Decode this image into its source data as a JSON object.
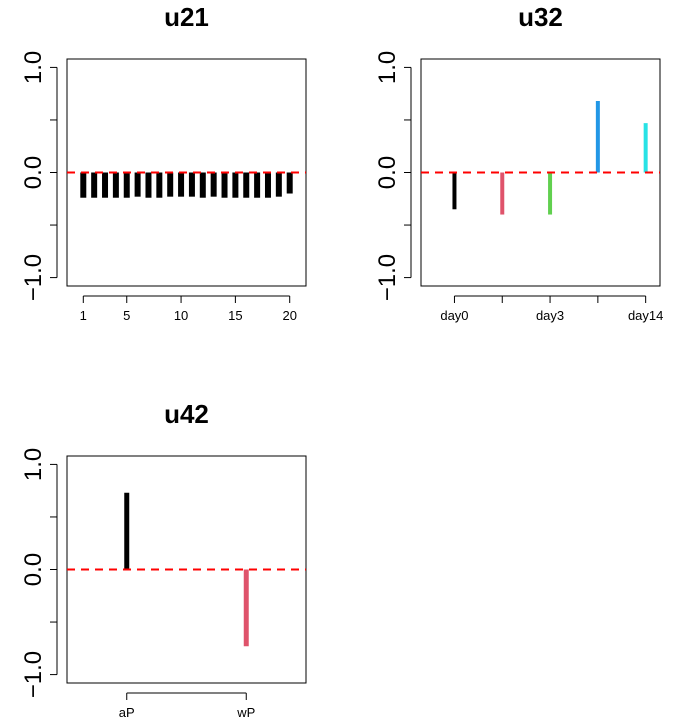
{
  "chart_data": [
    {
      "type": "bar",
      "title": "u21",
      "ylim": [
        -1.0,
        1.0
      ],
      "yticks": [
        {
          "value": 1.0,
          "label": "1.0"
        },
        {
          "value": 0.0,
          "label": "0.0"
        },
        {
          "value": -1.0,
          "label": "−1.0"
        }
      ],
      "xlim": [
        -0.5,
        21.5
      ],
      "xticks": [
        {
          "value": 1,
          "label": "1"
        },
        {
          "value": 5,
          "label": "5"
        },
        {
          "value": 10,
          "label": "10"
        },
        {
          "value": 15,
          "label": "15"
        },
        {
          "value": 20,
          "label": "20"
        }
      ],
      "x": [
        1,
        2,
        3,
        4,
        5,
        6,
        7,
        8,
        9,
        10,
        11,
        12,
        13,
        14,
        15,
        16,
        17,
        18,
        19,
        20
      ],
      "values": [
        -0.24,
        -0.24,
        -0.24,
        -0.24,
        -0.24,
        -0.23,
        -0.24,
        -0.24,
        -0.23,
        -0.23,
        -0.23,
        -0.24,
        -0.23,
        -0.24,
        -0.24,
        -0.24,
        -0.24,
        -0.24,
        -0.23,
        -0.2
      ],
      "colors": [
        "#000000"
      ],
      "reference_line": {
        "y": 0,
        "color": "#ff0000",
        "style": "dashed"
      },
      "grid": false
    },
    {
      "type": "bar",
      "title": "u32",
      "ylim": [
        -1.0,
        1.0
      ],
      "yticks": [
        {
          "value": 1.0,
          "label": "1.0"
        },
        {
          "value": 0.0,
          "label": "0.0"
        },
        {
          "value": -1.0,
          "label": "−1.0"
        }
      ],
      "xlim": [
        0.3,
        5.3
      ],
      "xticks": [
        {
          "value": 1,
          "label": "day0"
        },
        {
          "value": 3,
          "label": "day3"
        },
        {
          "value": 5,
          "label": "day14"
        }
      ],
      "x": [
        1,
        2,
        3,
        4,
        5
      ],
      "values": [
        -0.35,
        -0.4,
        -0.4,
        0.68,
        0.47
      ],
      "colors": [
        "#000000",
        "#df536b",
        "#61d04f",
        "#2297e6",
        "#28e2e5"
      ],
      "reference_line": {
        "y": 0,
        "color": "#ff0000",
        "style": "dashed"
      },
      "grid": false
    },
    {
      "type": "bar",
      "title": "u42",
      "ylim": [
        -1.0,
        1.0
      ],
      "yticks": [
        {
          "value": 1.0,
          "label": "1.0"
        },
        {
          "value": 0.0,
          "label": "0.0"
        },
        {
          "value": -1.0,
          "label": "−1.0"
        }
      ],
      "xlim": [
        0.5,
        2.5
      ],
      "xticks": [
        {
          "value": 1,
          "label": "aP"
        },
        {
          "value": 2,
          "label": "wP"
        }
      ],
      "x": [
        1,
        2
      ],
      "values": [
        0.73,
        -0.73
      ],
      "colors": [
        "#000000",
        "#df536b"
      ],
      "reference_line": {
        "y": 0,
        "color": "#ff0000",
        "style": "dashed"
      },
      "grid": false
    }
  ]
}
